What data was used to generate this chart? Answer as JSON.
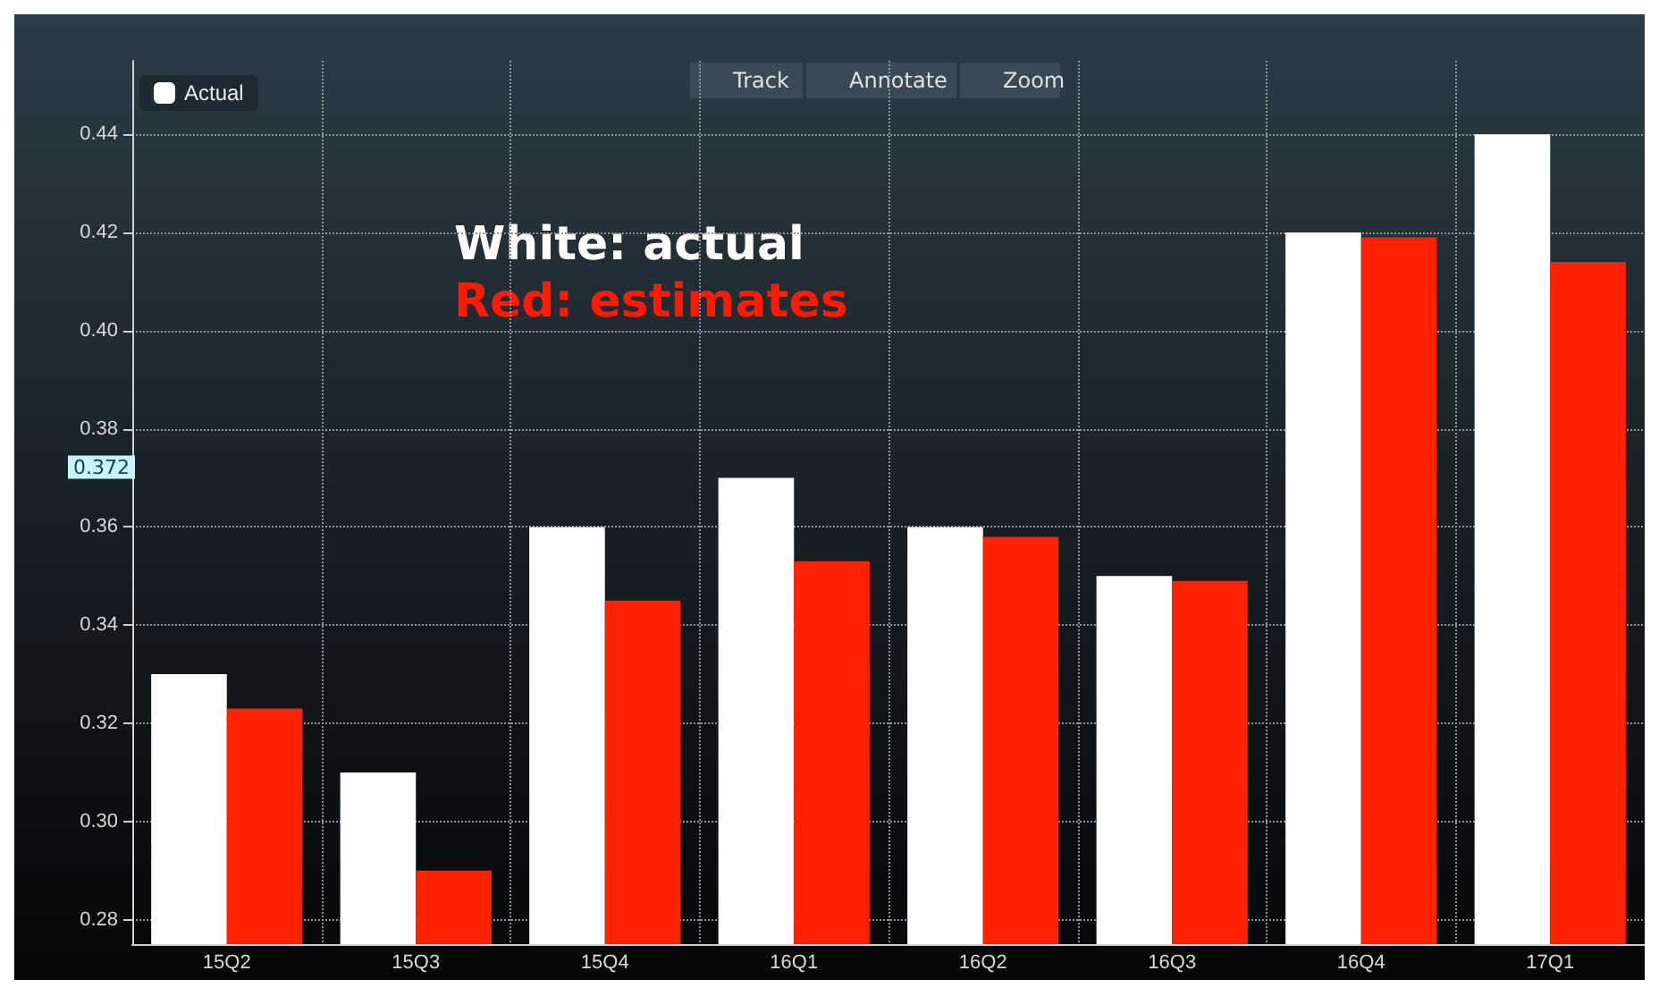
{
  "chart_data": {
    "type": "bar",
    "categories": [
      "15Q2",
      "15Q3",
      "15Q4",
      "16Q1",
      "16Q2",
      "16Q3",
      "16Q4",
      "17Q1"
    ],
    "series": [
      {
        "name": "Actual",
        "color": "#ffffff",
        "values": [
          0.33,
          0.31,
          0.36,
          0.37,
          0.36,
          0.35,
          0.42,
          0.44
        ]
      },
      {
        "color": "#ff2200",
        "values": [
          0.323,
          0.29,
          0.345,
          0.353,
          0.358,
          0.349,
          0.419,
          0.414
        ]
      }
    ],
    "ylim": [
      0.275,
      0.455
    ],
    "yticks": [
      0.28,
      {
        "value": 0.3,
        "label": "0.30"
      },
      0.32,
      0.34,
      0.36,
      0.38,
      {
        "value": 0.4,
        "label": "0.40"
      },
      0.42,
      0.44
    ],
    "grid": true,
    "legend": "top left",
    "annotations": [
      {
        "text": "White: actual"
      },
      {
        "text": "Red: estimates"
      },
      {
        "text": "0.372",
        "y": 0.372
      },
      {
        "text": "Track"
      },
      {
        "text": "Annotate"
      },
      {
        "text": "Zoom"
      }
    ]
  }
}
